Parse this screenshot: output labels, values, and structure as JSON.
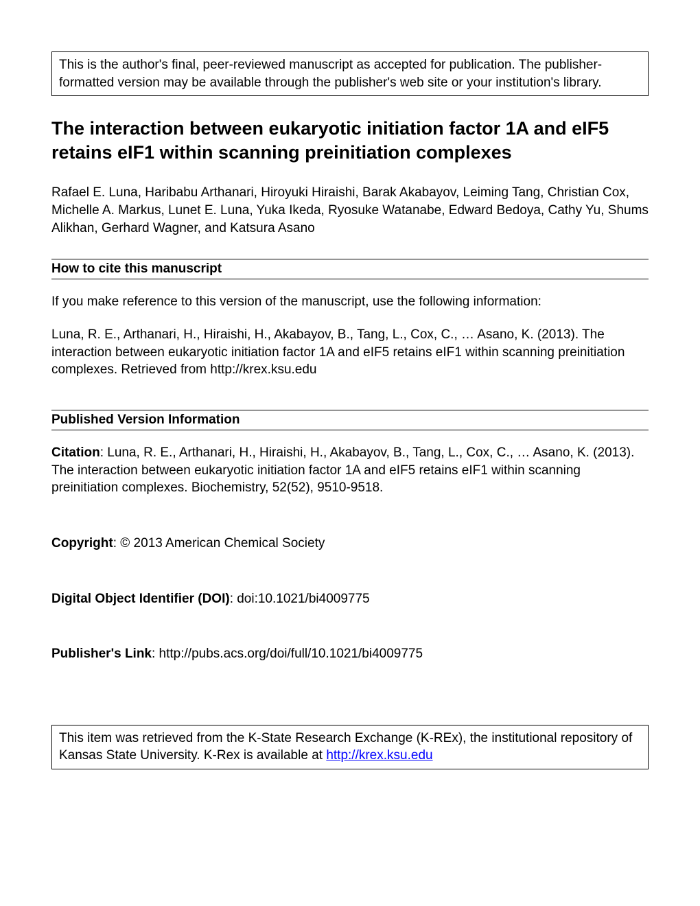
{
  "notice": "This is the author's final, peer-reviewed manuscript as accepted for publication.  The publisher-formatted version may be available through the publisher's web site or your institution's library.",
  "title": "The interaction between eukaryotic initiation factor 1A and eIF5 retains eIF1 within scanning preinitiation complexes",
  "authors": "Rafael E. Luna, Haribabu Arthanari, Hiroyuki Hiraishi, Barak Akabayov, Leiming Tang, Christian Cox, Michelle A. Markus, Lunet E. Luna, Yuka Ikeda, Ryosuke Watanabe, Edward Bedoya, Cathy Yu, Shums Alikhan, Gerhard Wagner, and Katsura Asano",
  "howToCite": {
    "header": "How to cite this manuscript",
    "intro": "If you make reference to this version of the manuscript, use the following information:",
    "citation": "Luna, R. E., Arthanari, H., Hiraishi, H., Akabayov, B., Tang, L., Cox, C., … Asano, K. (2013). The interaction between eukaryotic initiation factor 1A and eIF5 retains eIF1 within scanning preinitiation complexes. Retrieved from http://krex.ksu.edu"
  },
  "publishedVersion": {
    "header": "Published Version Information",
    "citationLabel": "Citation",
    "citationText": ": Luna, R. E., Arthanari, H., Hiraishi, H., Akabayov, B., Tang, L., Cox, C., … Asano, K. (2013). The interaction between eukaryotic initiation factor 1A and eIF5 retains eIF1 within scanning preinitiation complexes. Biochemistry, 52(52), 9510-9518.",
    "copyrightLabel": "Copyright",
    "copyrightText": ": © 2013 American Chemical Society",
    "doiLabel": "Digital Object Identifier (DOI)",
    "doiText": ": doi:10.1021/bi4009775",
    "publisherLabel": "Publisher's Link",
    "publisherText": ": http://pubs.acs.org/doi/full/10.1021/bi4009775"
  },
  "footer": {
    "text": "This item was retrieved from the K-State Research Exchange (K-REx), the institutional repository of Kansas State University.  K-Rex is available at ",
    "link": "http://krex.ksu.edu"
  }
}
